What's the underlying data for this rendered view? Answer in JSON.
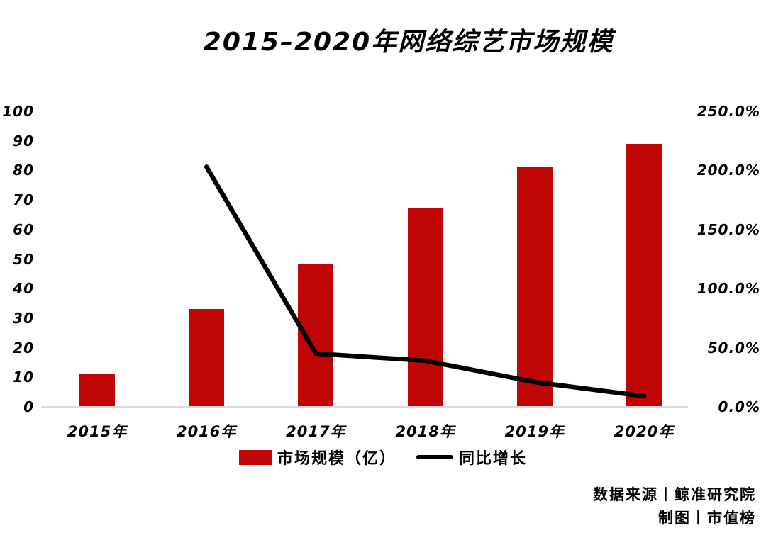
{
  "title": "2015–2020年网络综艺市场规模",
  "legend": {
    "bar_label": "市场规模（亿）",
    "line_label": "同比增长"
  },
  "source": {
    "line1": "数据来源丨鲸准研究院",
    "line2": "制图丨市值榜"
  },
  "colors": {
    "bar": "#c00505",
    "line": "#000000",
    "axis_line": "#d9d9d9",
    "text": "#000000",
    "background": "#ffffff"
  },
  "chart_data": {
    "type": "bar",
    "combo": "bar+line",
    "title": "2015–2020年网络综艺市场规模",
    "categories": [
      "2015年",
      "2016年",
      "2017年",
      "2018年",
      "2019年",
      "2020年"
    ],
    "series": [
      {
        "name": "市场规模（亿）",
        "type": "bar",
        "axis": "left",
        "values": [
          11,
          33,
          48.5,
          67.5,
          81,
          89
        ]
      },
      {
        "name": "同比增长",
        "type": "line",
        "axis": "right",
        "unit": "%",
        "values": [
          null,
          203,
          45,
          39,
          21,
          9
        ]
      }
    ],
    "left_axis": {
      "min": 0,
      "max": 100,
      "ticks": [
        "100",
        "90",
        "80",
        "70",
        "60",
        "50",
        "40",
        "30",
        "20",
        "10",
        "0"
      ]
    },
    "right_axis": {
      "min": 0,
      "max": 250,
      "unit": "%",
      "ticks": [
        "250.0%",
        "200.0%",
        "150.0%",
        "100.0%",
        "50.0%",
        "0.0%"
      ]
    },
    "grid": false,
    "legend_position": "bottom"
  }
}
